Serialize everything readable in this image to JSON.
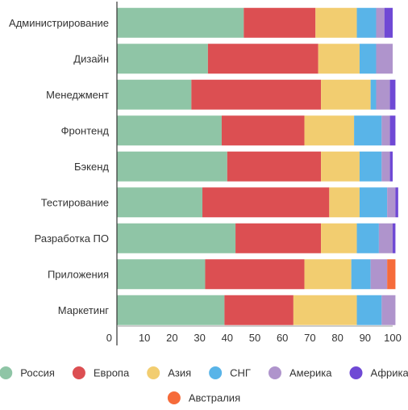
{
  "chart_data": {
    "type": "bar",
    "orientation": "horizontal",
    "stacked": true,
    "title": "",
    "xlabel": "",
    "ylabel": "",
    "xlim": [
      0,
      100
    ],
    "xticks": [
      0,
      10,
      20,
      30,
      40,
      50,
      60,
      70,
      80,
      90,
      100
    ],
    "grid": false,
    "legend_position": "bottom",
    "categories": [
      "Администрирование",
      "Дизайн",
      "Менеджмент",
      "Фронтенд",
      "Бэкенд",
      "Тестирование",
      "Разработка ПО",
      "Приложения",
      "Маркетинг"
    ],
    "series": [
      {
        "name": "Россия",
        "color": "#8fc5a6",
        "values": [
          46,
          33,
          27,
          38,
          40,
          31,
          43,
          32,
          39
        ]
      },
      {
        "name": "Европа",
        "color": "#dc4f52",
        "values": [
          26,
          40,
          47,
          30,
          34,
          46,
          31,
          36,
          25
        ]
      },
      {
        "name": "Азия",
        "color": "#f2cd70",
        "values": [
          15,
          15,
          18,
          18,
          14,
          11,
          13,
          17,
          23
        ]
      },
      {
        "name": "СНГ",
        "color": "#59b4e8",
        "values": [
          7,
          6,
          2,
          10,
          8,
          10,
          8,
          7,
          9
        ]
      },
      {
        "name": "Америка",
        "color": "#af94cc",
        "values": [
          3,
          6,
          5,
          3,
          3,
          3,
          5,
          6,
          5
        ]
      },
      {
        "name": "Африка",
        "color": "#6f49d5",
        "values": [
          3,
          0,
          2,
          2,
          1,
          1,
          1,
          0,
          0
        ]
      },
      {
        "name": "Австралия",
        "color": "#f66b3a",
        "values": [
          0,
          0,
          0,
          0,
          0,
          0,
          0,
          3,
          0
        ]
      }
    ]
  }
}
